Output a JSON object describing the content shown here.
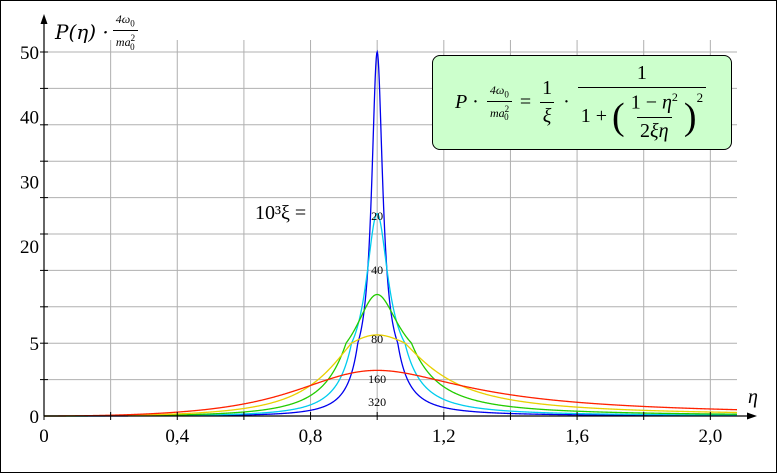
{
  "chart_data": {
    "type": "line",
    "title": "",
    "ylabel": {
      "main": "P(η) ·",
      "frac_num": "4ω",
      "frac_num_sub": "0",
      "frac_den": "ma",
      "frac_den_sup": "2",
      "frac_den_sub": "0"
    },
    "xlabel": "η",
    "xlim": [
      0,
      2.08
    ],
    "ylim": [
      0,
      52
    ],
    "x_ticks": [
      0,
      0.4,
      0.8,
      1.2,
      1.6,
      2.0
    ],
    "x_tick_labels": [
      "0",
      "0,4",
      "0,8",
      "1,2",
      "1,6",
      "2,0"
    ],
    "x_grid_step": 0.2,
    "y_ticks": [
      0,
      5,
      20,
      30,
      40,
      50
    ],
    "y_tick_labels": [
      "0",
      "5",
      "20",
      "30",
      "40",
      "50"
    ],
    "y_grid": [
      0,
      5,
      10,
      15,
      20,
      25,
      30,
      35,
      40,
      45,
      50
    ],
    "y_grid_note": "axis drawn with a break: 0–5 band is 10 units tall",
    "grid": true,
    "series_label": "10³ξ =",
    "series": [
      {
        "xi_times_1000": 20,
        "label": "20",
        "color": "#0000ee",
        "peak": 50
      },
      {
        "xi_times_1000": 40,
        "label": "40",
        "color": "#00ccee",
        "peak": 25
      },
      {
        "xi_times_1000": 80,
        "label": "80",
        "color": "#22cc00",
        "peak": 12.5
      },
      {
        "xi_times_1000": 160,
        "label": "160",
        "color": "#e8d000",
        "peak": 6.25
      },
      {
        "xi_times_1000": 320,
        "label": "320",
        "color": "#ff2200",
        "peak": 3.125
      }
    ],
    "formula": "P · 4ω0/(ma0²) = 1/ξ · 1 / (1 + ((1 − η²)/(2ξη))²)"
  }
}
